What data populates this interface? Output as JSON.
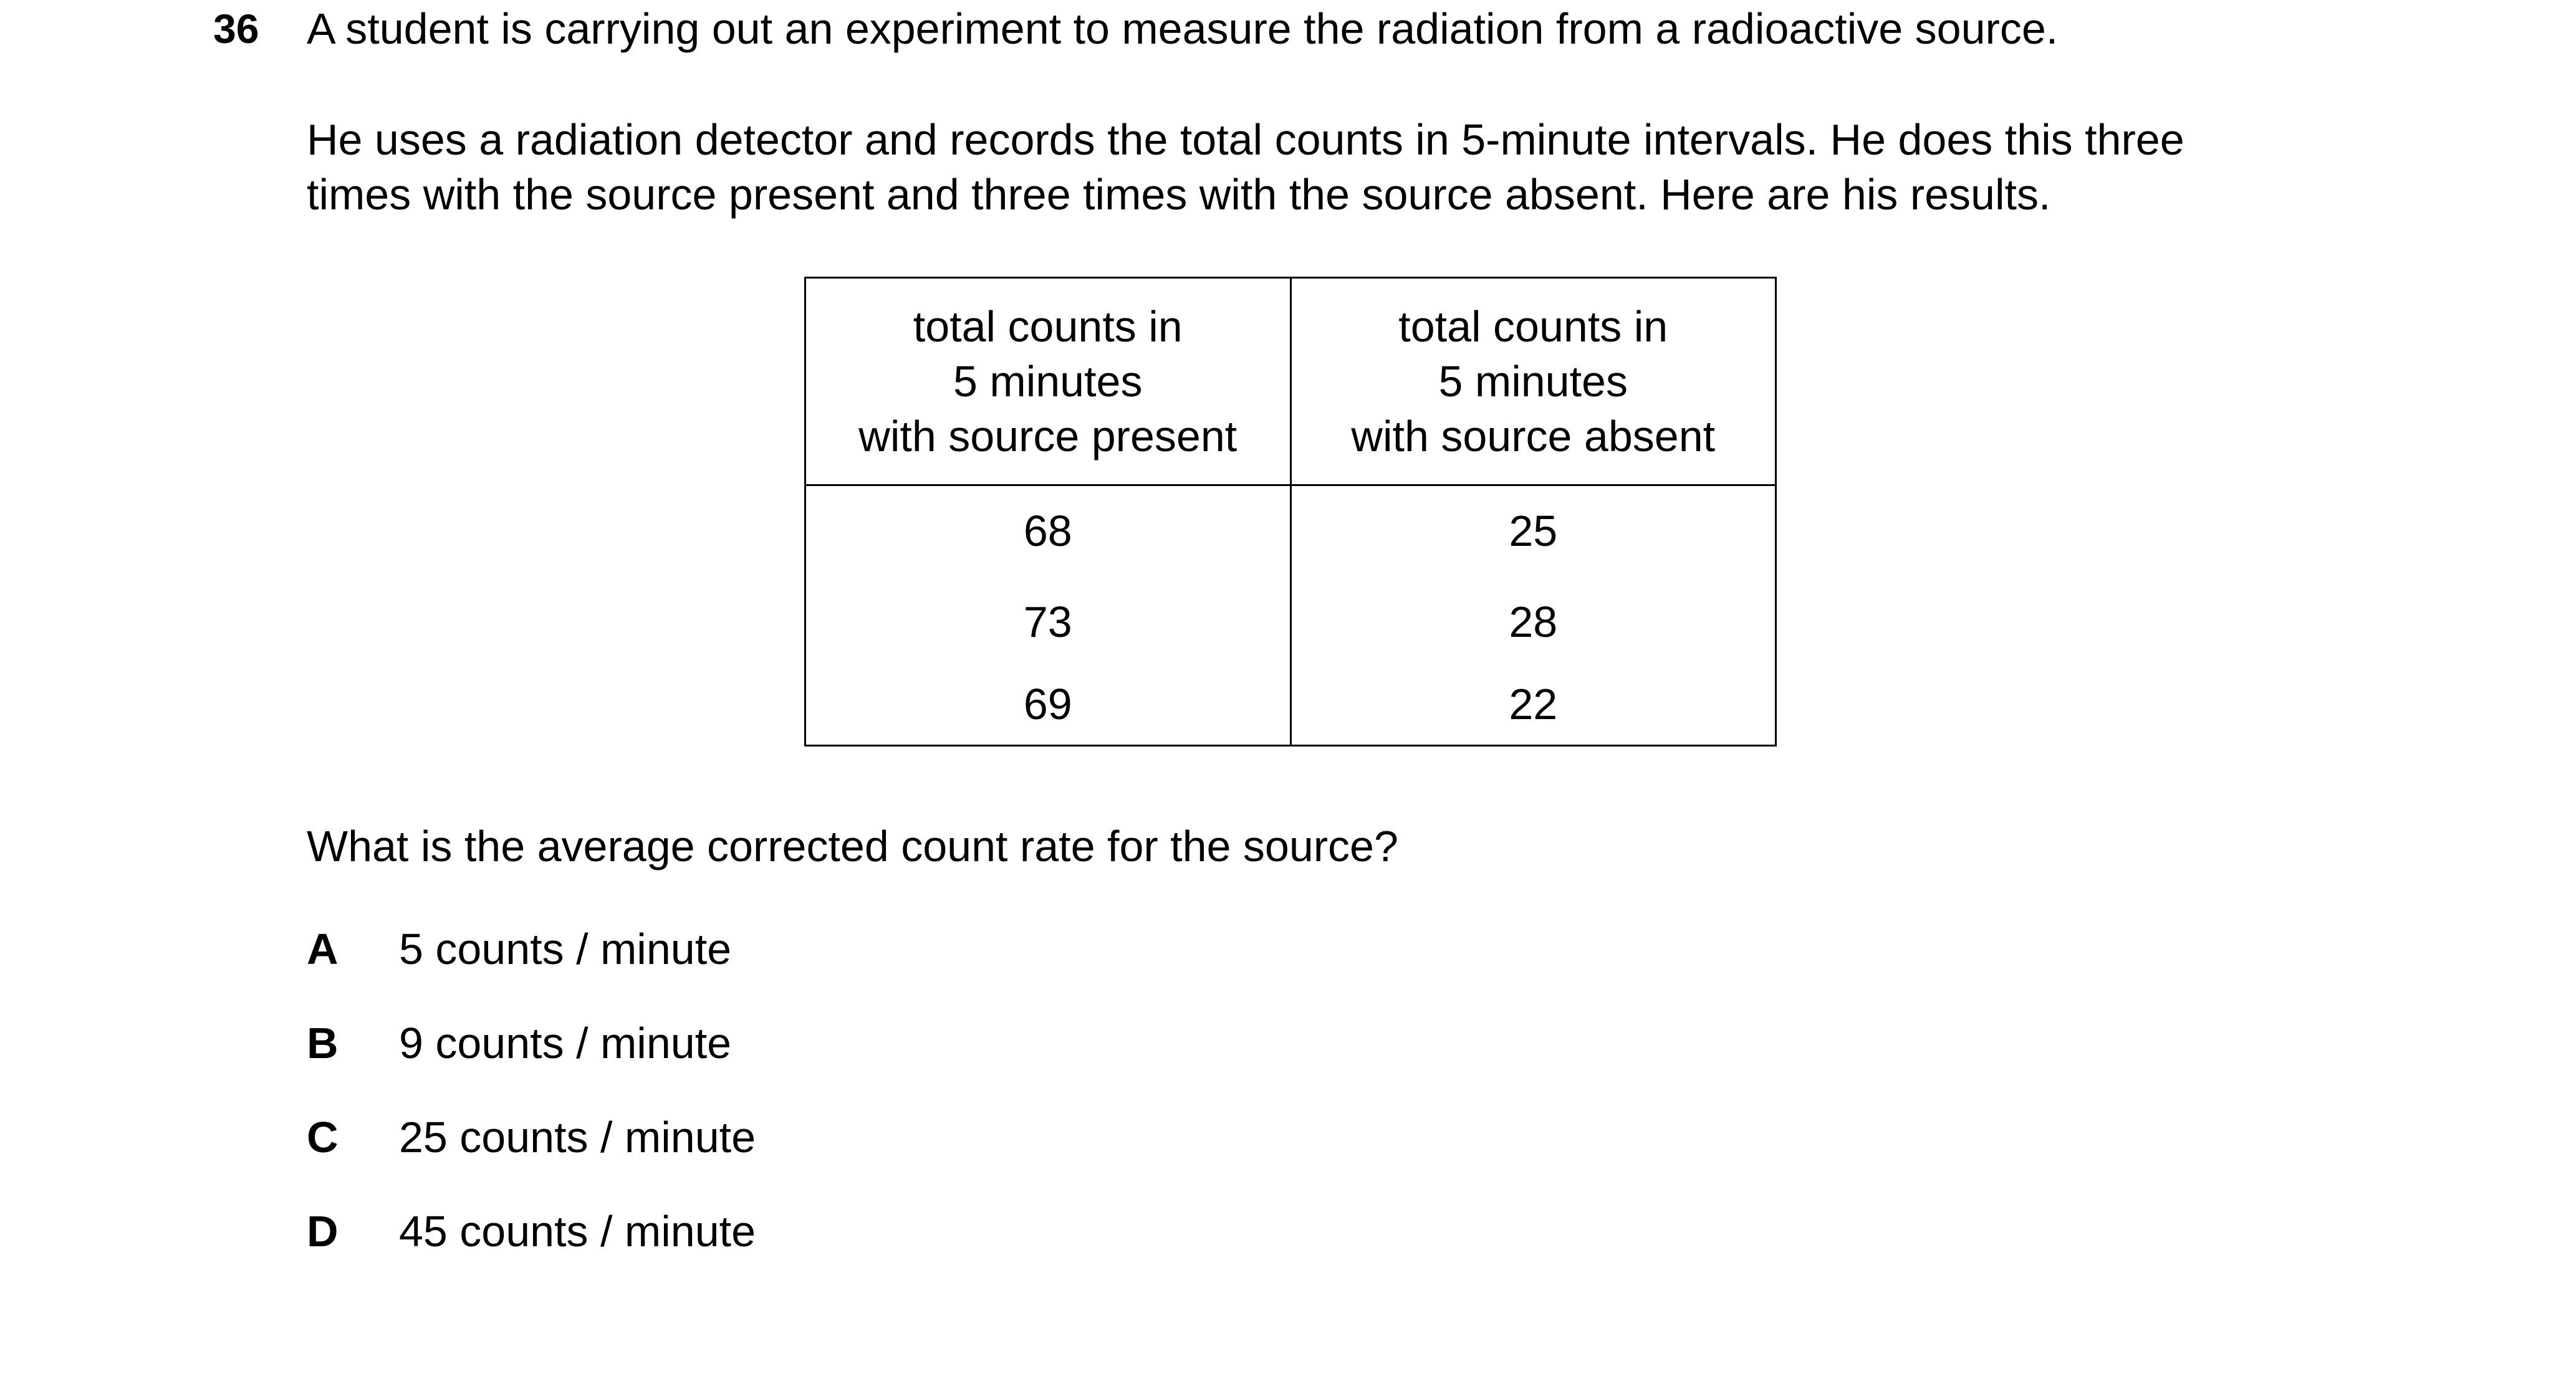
{
  "question": {
    "number": "36",
    "stem": "A student is carrying out an experiment to measure the radiation from a radioactive source.",
    "paragraph_lines": [
      "He uses a radiation detector and records the total counts in 5-minute intervals. He does this three",
      "times with the source present and three times with the source absent. Here are his results."
    ],
    "prompt": "What is the average corrected count rate for the source?"
  },
  "table": {
    "headers": [
      {
        "lines": [
          "total counts in",
          "5 minutes",
          "with source present"
        ]
      },
      {
        "lines": [
          "total counts in",
          "5 minutes",
          "with source absent"
        ]
      }
    ],
    "rows": [
      [
        "68",
        "25"
      ],
      [
        "73",
        "28"
      ],
      [
        "69",
        "22"
      ]
    ]
  },
  "options": [
    {
      "letter": "A",
      "text": "5 counts / minute"
    },
    {
      "letter": "B",
      "text": "9 counts / minute"
    },
    {
      "letter": "C",
      "text": "25 counts / minute"
    },
    {
      "letter": "D",
      "text": "45 counts / minute"
    }
  ]
}
